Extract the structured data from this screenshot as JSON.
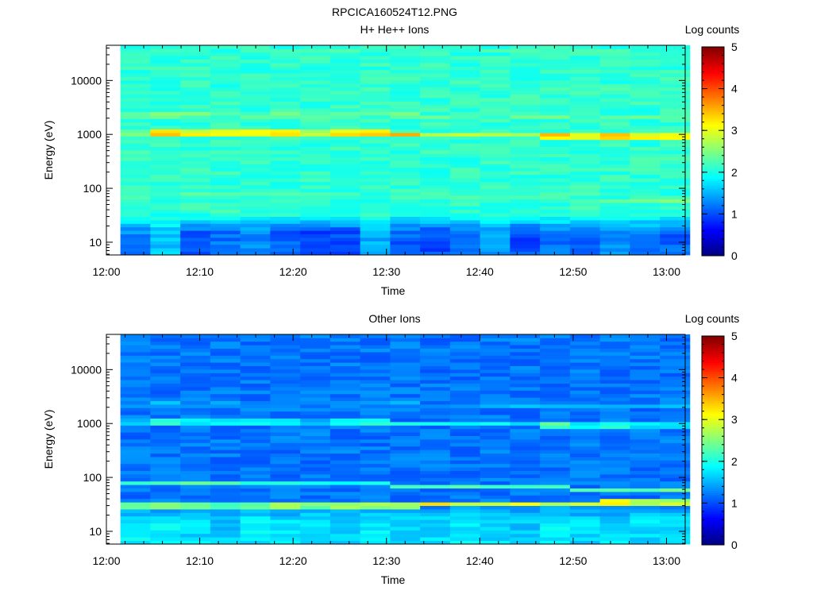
{
  "figure_title": "RPCICA160524T12.PNG",
  "chart_data": [
    {
      "type": "heatmap",
      "title": "H+ He++ Ions",
      "xlabel": "Time",
      "ylabel": "Energy (eV)",
      "x_ticks": [
        "12:00",
        "12:10",
        "12:20",
        "12:30",
        "12:40",
        "12:50",
        "13:00"
      ],
      "x_range": [
        "12:00",
        "13:02"
      ],
      "data_time_range": [
        "12:01:30",
        "13:02:30"
      ],
      "y_scale": "log",
      "y_ticks": [
        10,
        100,
        1000,
        10000
      ],
      "y_tick_labels": [
        "10",
        "100",
        "1000",
        "10000"
      ],
      "y_range": [
        5.8,
        45000
      ],
      "colorbar": {
        "label": "Log counts",
        "range": [
          0,
          5
        ],
        "ticks": [
          "0",
          "1",
          "2",
          "3",
          "4",
          "5"
        ],
        "colormap": "jet"
      },
      "features": {
        "background_log_counts": 2.1,
        "band_main": {
          "energy_eV": [
            1050,
            1050,
            1050,
            1050,
            1050,
            1050,
            1050,
            1050,
            1040,
            1020,
            1020,
            1020,
            1000,
            980,
            960,
            930,
            920,
            920,
            920
          ],
          "log_counts": [
            2.6,
            3.6,
            3.3,
            3.2,
            3.3,
            3.5,
            2.9,
            3.3,
            3.4,
            3.5,
            2.8,
            2.9,
            2.9,
            2.9,
            3.6,
            3.2,
            3.6,
            3.3,
            3.3
          ]
        },
        "band_upper": {
          "energy_eV": [
            2300,
            2300,
            2300,
            2300,
            2300,
            2300,
            2300,
            2300,
            2300,
            2300,
            2200,
            2200,
            2200,
            2200,
            2200,
            2200,
            2200,
            2200,
            2200
          ],
          "log_counts": [
            2.5,
            2.7,
            2.6,
            2.5,
            2.5,
            2.5,
            2.5,
            2.5,
            2.5,
            2.7,
            2.4,
            2.4,
            2.4,
            2.4,
            2.5,
            2.4,
            2.4,
            2.4,
            2.4
          ]
        },
        "band_low": {
          "energy_eV": [
            80,
            80,
            80,
            78,
            78,
            76,
            75,
            75,
            74,
            72,
            70,
            68,
            66,
            65,
            64,
            62,
            60,
            60,
            60
          ],
          "log_counts": [
            2.1,
            2.0,
            2.3,
            2.2,
            2.1,
            2.3,
            2.4,
            2.3,
            2.2,
            2.3,
            2.4,
            2.4,
            2.4,
            2.3,
            2.3,
            2.3,
            2.4,
            2.5,
            2.5
          ]
        },
        "low_energy_log_counts": [
          1.3,
          1.6,
          1.1,
          1.2,
          1.3,
          1.1,
          0.9,
          1.0,
          1.5,
          1.1,
          1.0,
          1.1,
          1.4,
          1.0,
          1.2,
          1.1,
          1.3,
          1.2,
          1.1
        ]
      }
    },
    {
      "type": "heatmap",
      "title": "Other Ions",
      "xlabel": "Time",
      "ylabel": "Energy (eV)",
      "x_ticks": [
        "12:00",
        "12:10",
        "12:20",
        "12:30",
        "12:40",
        "12:50",
        "13:00"
      ],
      "x_range": [
        "12:00",
        "13:02"
      ],
      "data_time_range": [
        "12:01:30",
        "13:02:30"
      ],
      "y_scale": "log",
      "y_ticks": [
        10,
        100,
        1000,
        10000
      ],
      "y_tick_labels": [
        "10",
        "100",
        "1000",
        "10000"
      ],
      "y_range": [
        5.8,
        45000
      ],
      "colorbar": {
        "label": "Log counts",
        "range": [
          0,
          5
        ],
        "ticks": [
          "0",
          "1",
          "2",
          "3",
          "4",
          "5"
        ],
        "colormap": "jet"
      },
      "features": {
        "background_log_counts": 1.2,
        "band_main": {
          "energy_eV": [
            1050,
            1050,
            1050,
            1050,
            1050,
            1050,
            1050,
            1050,
            1040,
            1020,
            1020,
            1020,
            1000,
            980,
            960,
            930,
            920,
            920,
            920
          ],
          "log_counts": [
            1.9,
            2.3,
            2.0,
            2.0,
            2.0,
            2.1,
            1.9,
            2.0,
            2.1,
            2.0,
            1.9,
            2.0,
            1.9,
            1.9,
            2.4,
            2.0,
            2.3,
            2.0,
            2.0
          ]
        },
        "band_upper": {
          "energy_eV": [
            2300,
            2300,
            2300,
            2300,
            2300,
            2300,
            2300,
            2300,
            2300,
            2300,
            2200,
            2200,
            2200,
            2200,
            2200,
            2200,
            2200,
            2200,
            2200
          ],
          "log_counts": [
            1.6,
            1.7,
            1.6,
            1.6,
            1.6,
            1.6,
            1.6,
            1.6,
            1.6,
            1.7,
            1.6,
            1.6,
            1.6,
            1.6,
            1.6,
            1.6,
            1.6,
            1.6,
            1.6
          ]
        },
        "band_low": {
          "energy_eV": [
            80,
            80,
            80,
            78,
            78,
            76,
            75,
            75,
            74,
            72,
            70,
            68,
            66,
            65,
            64,
            62,
            60,
            60,
            60
          ],
          "log_counts": [
            2.2,
            2.2,
            2.3,
            2.2,
            2.2,
            2.4,
            2.3,
            2.3,
            2.3,
            2.4,
            2.4,
            2.4,
            2.4,
            2.4,
            2.4,
            2.4,
            2.4,
            2.5,
            2.5
          ]
        },
        "low_band": {
          "energy_eV": [
            30,
            30,
            30,
            30,
            30,
            30,
            30,
            30,
            30,
            30,
            32,
            32,
            32,
            32,
            32,
            32,
            34,
            34,
            34
          ],
          "log_counts": [
            2.6,
            2.6,
            2.5,
            2.5,
            2.6,
            2.8,
            2.7,
            2.8,
            2.8,
            2.9,
            3.2,
            2.9,
            2.8,
            3.2,
            2.8,
            2.9,
            3.3,
            3.0,
            3.0
          ]
        },
        "low_energy_log_counts": [
          1.8,
          1.8,
          1.7,
          1.6,
          1.8,
          1.7,
          1.8,
          1.7,
          1.8,
          1.7,
          1.7,
          1.8,
          1.7,
          1.6,
          1.8,
          1.7,
          1.7,
          1.7,
          1.7
        ]
      }
    }
  ]
}
